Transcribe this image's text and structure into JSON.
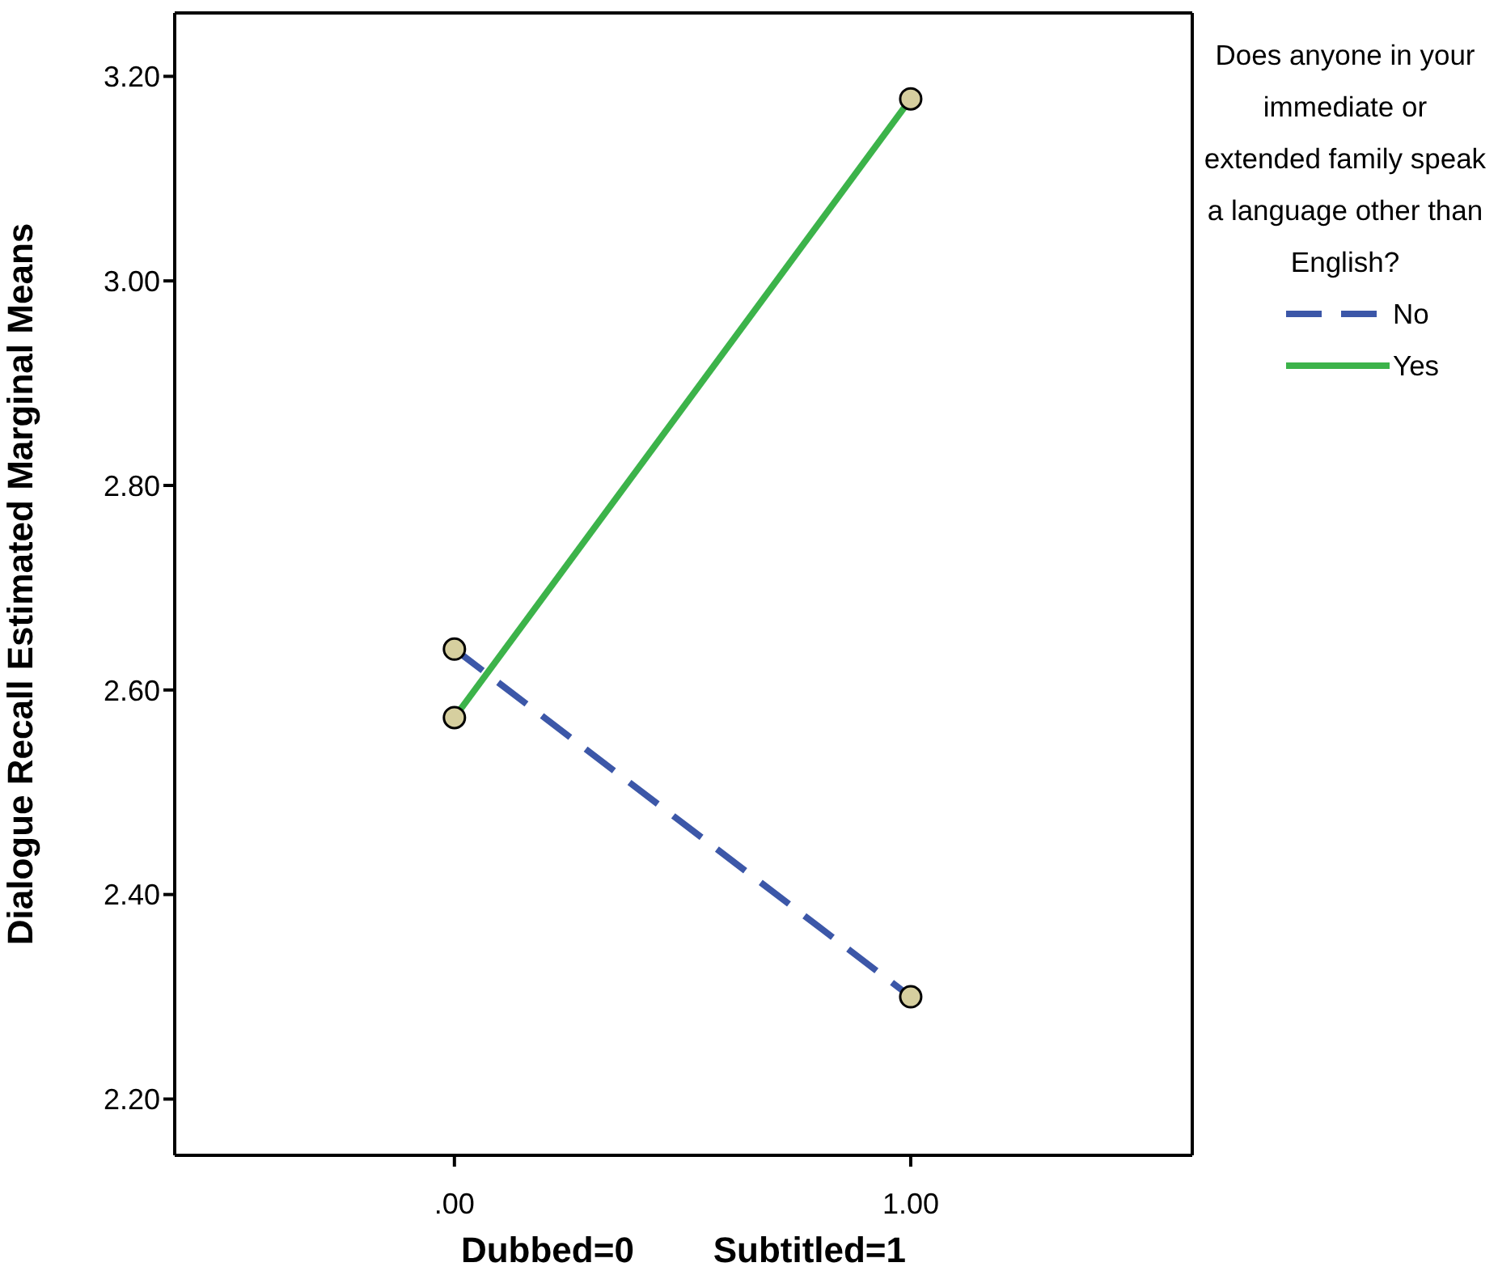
{
  "chart_data": {
    "type": "line",
    "xlabel": "Dubbed=0        Subtitled=1",
    "ylabel": "Dialogue Recall Estimated Marginal Means",
    "legend_title": "Does anyone in your immediate or extended family speak a language other than English?",
    "x": [
      0,
      1
    ],
    "series": [
      {
        "name": "No",
        "color": "#3c57a8",
        "values": [
          2.64,
          2.3
        ],
        "line_style": "dashed"
      },
      {
        "name": "Yes",
        "color": "#3cb34a",
        "values": [
          2.573,
          3.178
        ],
        "line_style": "solid"
      }
    ],
    "xlim": [
      -0.613,
      1.617
    ],
    "xticks": [
      {
        "value": 0,
        "label": ".00"
      },
      {
        "value": 1,
        "label": "1.00"
      }
    ],
    "ylim": [
      2.145,
      3.262
    ],
    "yticks": [
      {
        "value": 2.2,
        "label": "2.20"
      },
      {
        "value": 2.4,
        "label": "2.40"
      },
      {
        "value": 2.6,
        "label": "2.60"
      },
      {
        "value": 2.8,
        "label": "2.80"
      },
      {
        "value": 3.0,
        "label": "3.00"
      },
      {
        "value": 3.2,
        "label": "3.20"
      }
    ],
    "marker": "circle",
    "grid": false,
    "legend": "top right"
  }
}
